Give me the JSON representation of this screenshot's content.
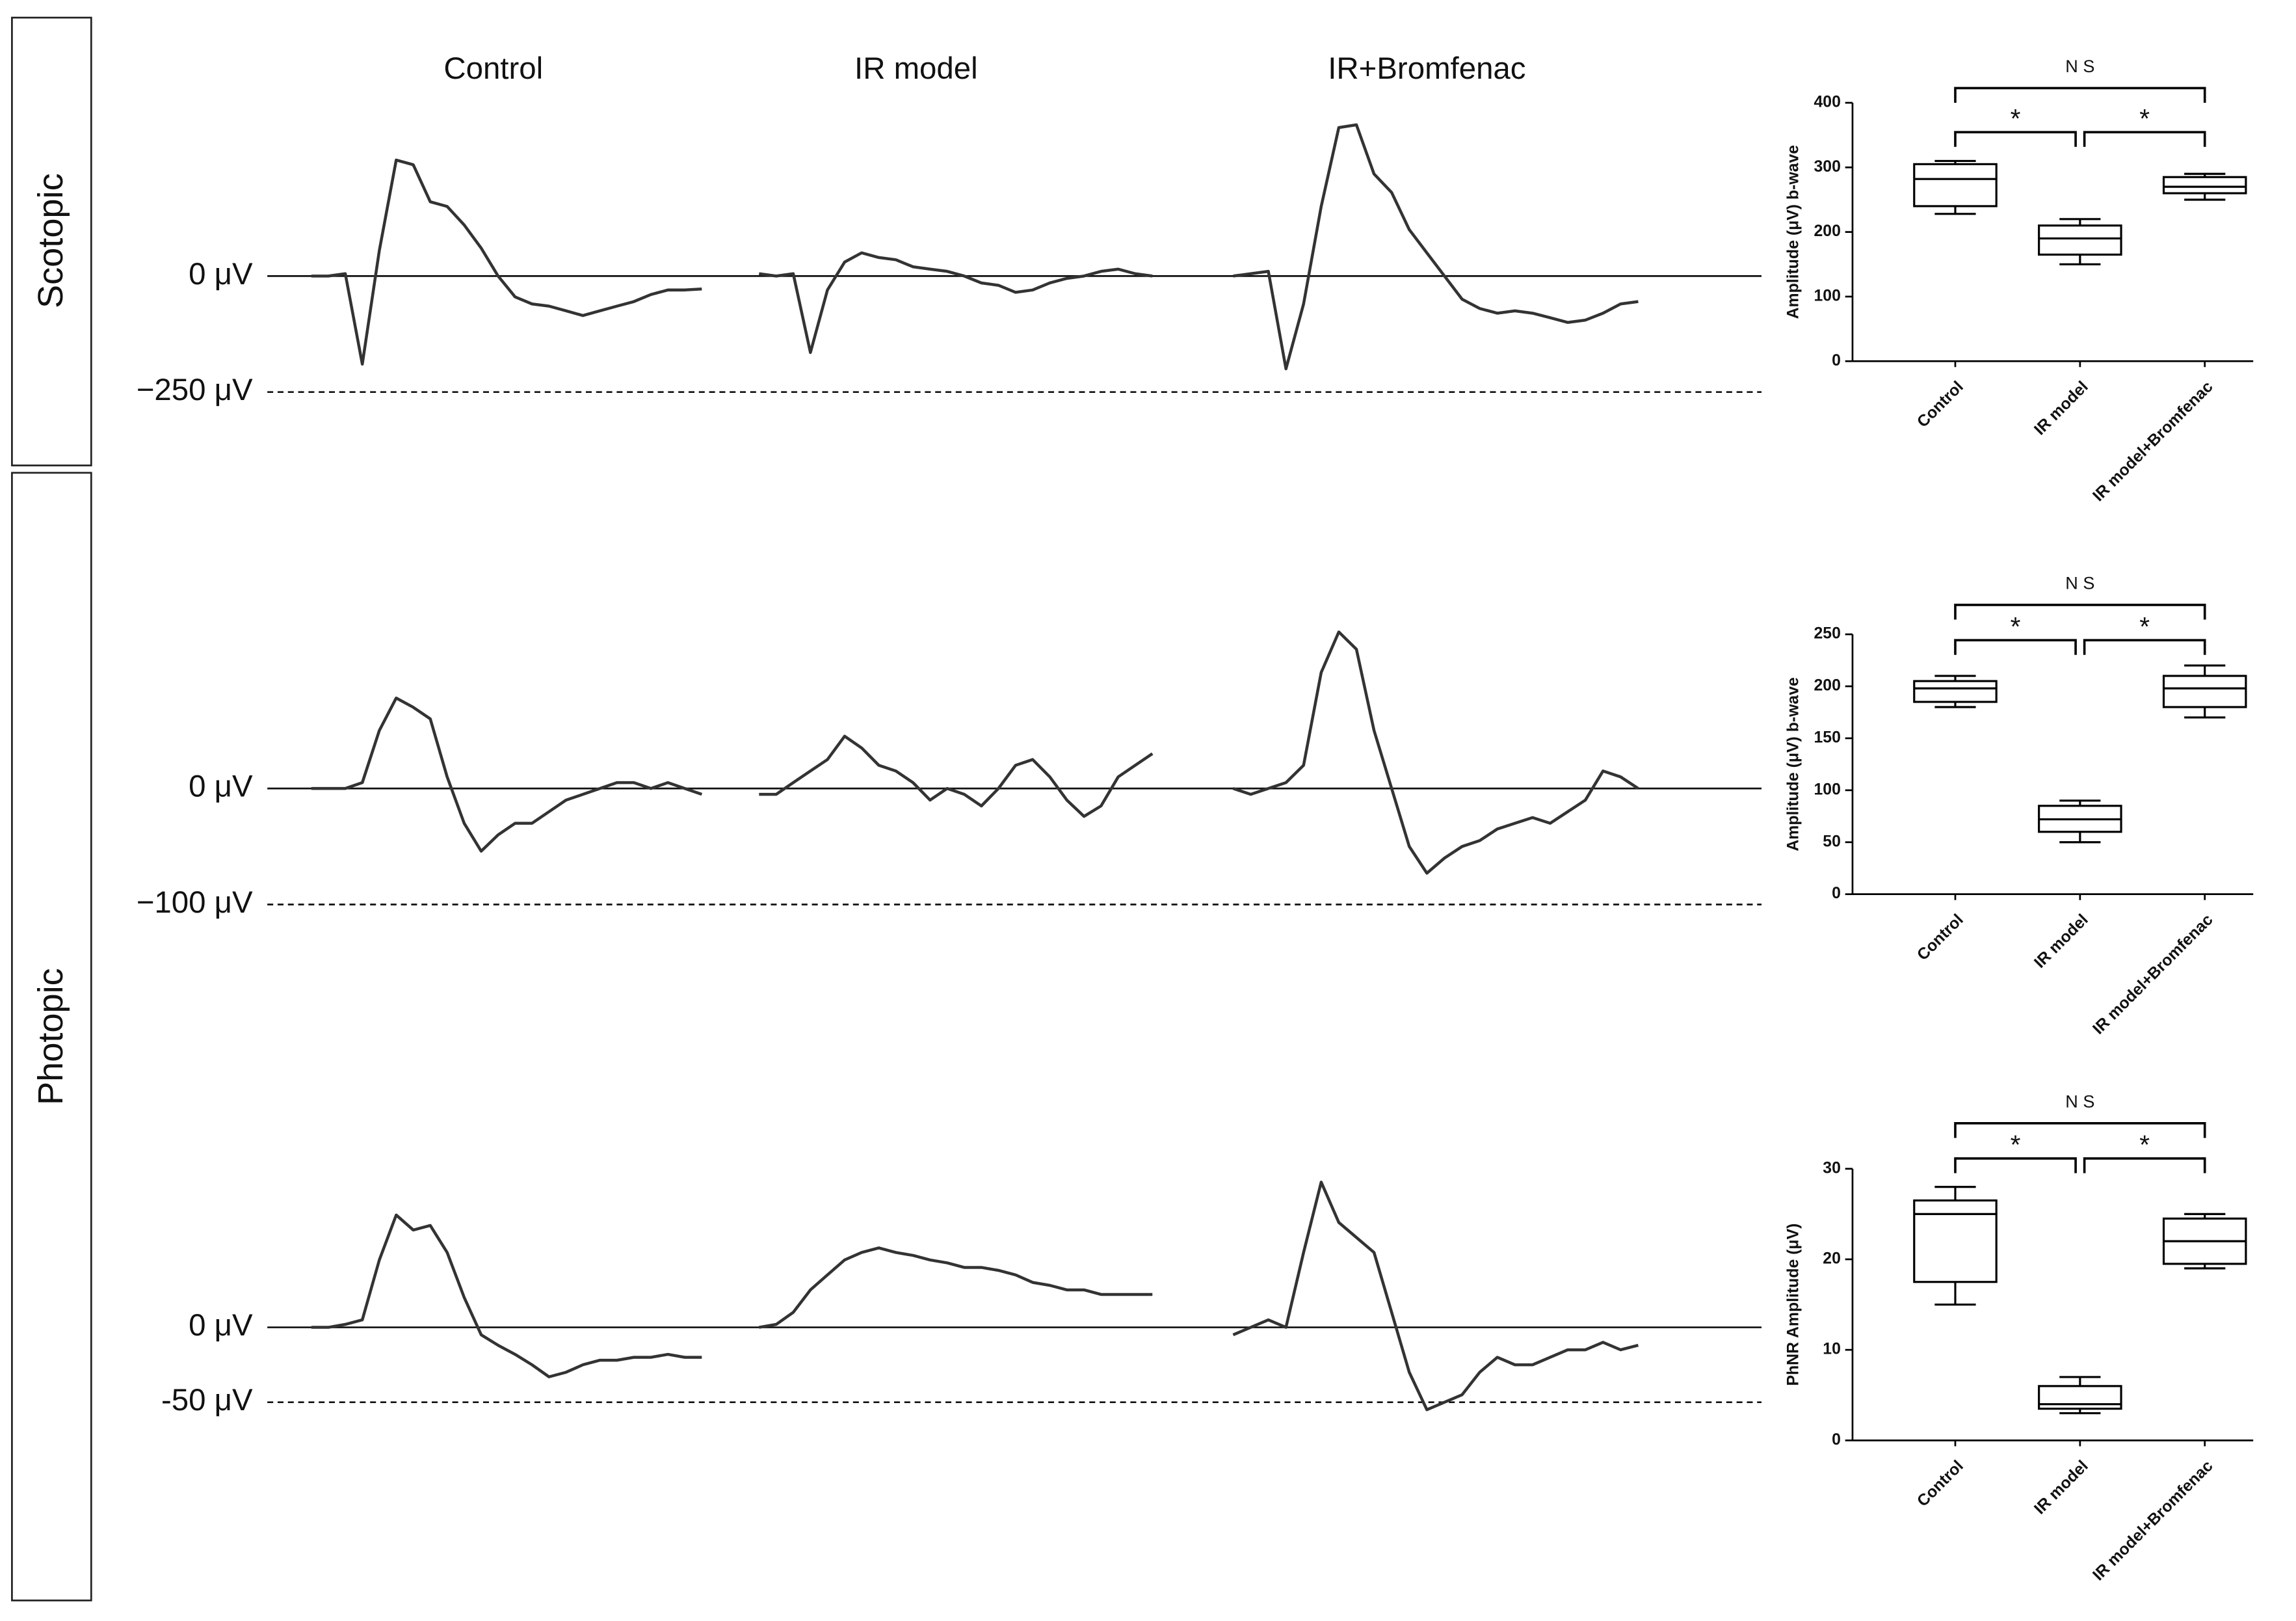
{
  "figure": {
    "row_labels": [
      "Scotopic",
      "Photopic"
    ],
    "column_titles": [
      "Control",
      "IR model",
      "IR+Bromfenac"
    ]
  },
  "chart_data": [
    {
      "type": "trace",
      "ylim": [
        -250,
        350
      ],
      "yticks": [
        {
          "value": 0,
          "label": "0 μV"
        },
        {
          "value": -250,
          "label": "−250 μV"
        }
      ],
      "series": [
        {
          "color": "#333333",
          "values": [
            0,
            0,
            5,
            -190,
            55,
            250,
            240,
            160,
            150,
            110,
            60,
            0,
            -45,
            -60,
            -65,
            -75,
            -85,
            -75,
            -65,
            -55,
            -40,
            -30,
            -30,
            -28
          ]
        },
        {
          "color": "#333333",
          "values": [
            5,
            0,
            5,
            -165,
            -30,
            30,
            50,
            40,
            35,
            20,
            15,
            10,
            0,
            -15,
            -20,
            -35,
            -30,
            -15,
            -5,
            0,
            10,
            15,
            5,
            0
          ]
        },
        {
          "color": "#333333",
          "values": [
            0,
            5,
            10,
            -200,
            -60,
            150,
            320,
            326,
            220,
            180,
            100,
            50,
            0,
            -50,
            -70,
            -80,
            -75,
            -80,
            -90,
            -100,
            -95,
            -80,
            -60,
            -55
          ]
        }
      ]
    },
    {
      "type": "trace",
      "ylim": [
        -100,
        150
      ],
      "yticks": [
        {
          "value": 0,
          "label": "0 μV"
        },
        {
          "value": -100,
          "label": "−100 μV"
        }
      ],
      "series": [
        {
          "color": "#333333",
          "values": [
            0,
            0,
            0,
            5,
            50,
            78,
            70,
            60,
            10,
            -30,
            -54,
            -40,
            -30,
            -30,
            -20,
            -10,
            -5,
            0,
            5,
            5,
            0,
            5,
            0,
            -5
          ]
        },
        {
          "color": "#333333",
          "values": [
            -5,
            -5,
            5,
            15,
            25,
            45,
            35,
            20,
            15,
            5,
            -10,
            0,
            -5,
            -15,
            0,
            20,
            25,
            10,
            -10,
            -24,
            -15,
            10,
            20,
            30
          ]
        },
        {
          "color": "#333333",
          "values": [
            0,
            -5,
            0,
            5,
            20,
            100,
            135,
            120,
            50,
            0,
            -50,
            -73,
            -60,
            -50,
            -45,
            -35,
            -30,
            -25,
            -30,
            -20,
            -10,
            15,
            10,
            0
          ]
        }
      ]
    },
    {
      "type": "trace",
      "ylim": [
        -50,
        110
      ],
      "yticks": [
        {
          "value": 0,
          "label": "0 μV"
        },
        {
          "value": -50,
          "label": "-50 μV"
        }
      ],
      "series": [
        {
          "color": "#333333",
          "values": [
            0,
            0,
            2,
            5,
            45,
            75,
            65,
            68,
            50,
            20,
            -5,
            -12,
            -18,
            -25,
            -33,
            -30,
            -25,
            -22,
            -22,
            -20,
            -20,
            -18,
            -20,
            -20
          ]
        },
        {
          "color": "#333333",
          "values": [
            0,
            2,
            10,
            25,
            35,
            45,
            50,
            53,
            50,
            48,
            45,
            43,
            40,
            40,
            38,
            35,
            30,
            28,
            25,
            25,
            22,
            22,
            22,
            22
          ]
        },
        {
          "color": "#333333",
          "values": [
            -5,
            0,
            5,
            0,
            50,
            97,
            70,
            60,
            50,
            10,
            -30,
            -55,
            -50,
            -45,
            -30,
            -20,
            -25,
            -25,
            -20,
            -15,
            -15,
            -10,
            -15,
            -12
          ]
        }
      ]
    },
    {
      "type": "box",
      "ylabel": "Amplitude (μV) b-wave",
      "categories": [
        "Control",
        "IR model",
        "IR model+Bromfenac"
      ],
      "min": [
        228,
        150,
        250
      ],
      "q1": [
        240,
        165,
        260
      ],
      "median": [
        282,
        190,
        270
      ],
      "q3": [
        305,
        210,
        285
      ],
      "max": [
        310,
        220,
        290
      ],
      "color": "#000000",
      "ylim": [
        0,
        400
      ],
      "yticks": [
        0,
        100,
        200,
        300,
        400
      ],
      "significance": [
        "N S",
        "*",
        "*"
      ]
    },
    {
      "type": "box",
      "ylabel": "Amplitude (μV) b-wave",
      "categories": [
        "Control",
        "IR model",
        "IR model+Bromfenac"
      ],
      "min": [
        180,
        50,
        170
      ],
      "q1": [
        185,
        60,
        180
      ],
      "median": [
        198,
        72,
        198
      ],
      "q3": [
        205,
        85,
        210
      ],
      "max": [
        210,
        90,
        220
      ],
      "color": "#000000",
      "ylim": [
        0,
        250
      ],
      "yticks": [
        0,
        50,
        100,
        150,
        200,
        250
      ],
      "significance": [
        "N S",
        "*",
        "*"
      ]
    },
    {
      "type": "box",
      "ylabel": "PhNR Amplitude (μV)",
      "categories": [
        "Control",
        "IR model",
        "IR model+Bromfenac"
      ],
      "min": [
        15,
        3,
        19
      ],
      "q1": [
        17.5,
        3.5,
        19.5
      ],
      "median": [
        25,
        4,
        22
      ],
      "q3": [
        26.5,
        6,
        24.5
      ],
      "max": [
        28,
        7,
        25
      ],
      "color": "#000000",
      "ylim": [
        0,
        30
      ],
      "yticks": [
        0,
        10,
        20,
        30
      ],
      "significance": [
        "N S",
        "*",
        "*"
      ]
    }
  ]
}
